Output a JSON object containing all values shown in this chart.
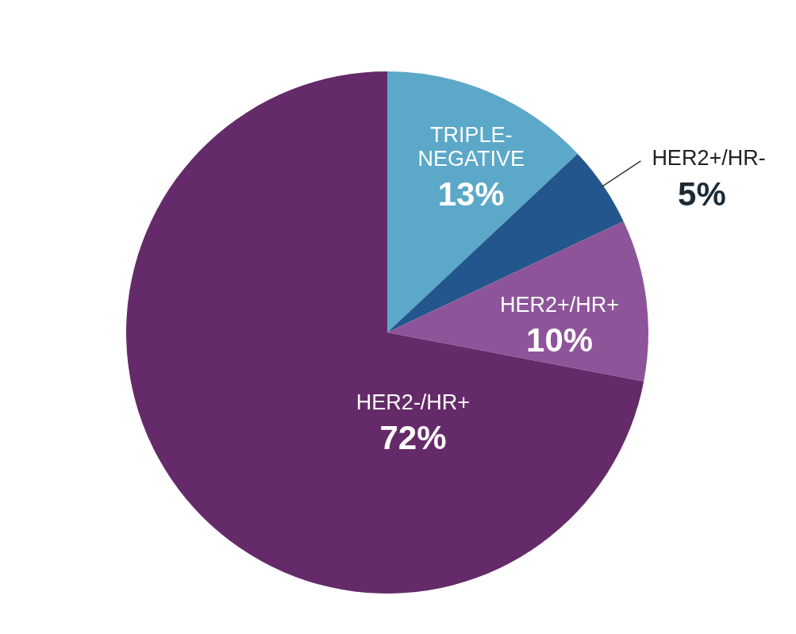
{
  "chart_data": {
    "type": "pie",
    "categories": [
      "TRIPLE-NEGATIVE",
      "HER2+/HR-",
      "HER2+/HR+",
      "HER2-/HR+"
    ],
    "values": [
      13,
      5,
      10,
      72
    ],
    "colors": [
      "#5ba8c8",
      "#23568c",
      "#8e5499",
      "#652a69"
    ],
    "value_labels": [
      "13%",
      "5%",
      "10%",
      "72%"
    ]
  }
}
